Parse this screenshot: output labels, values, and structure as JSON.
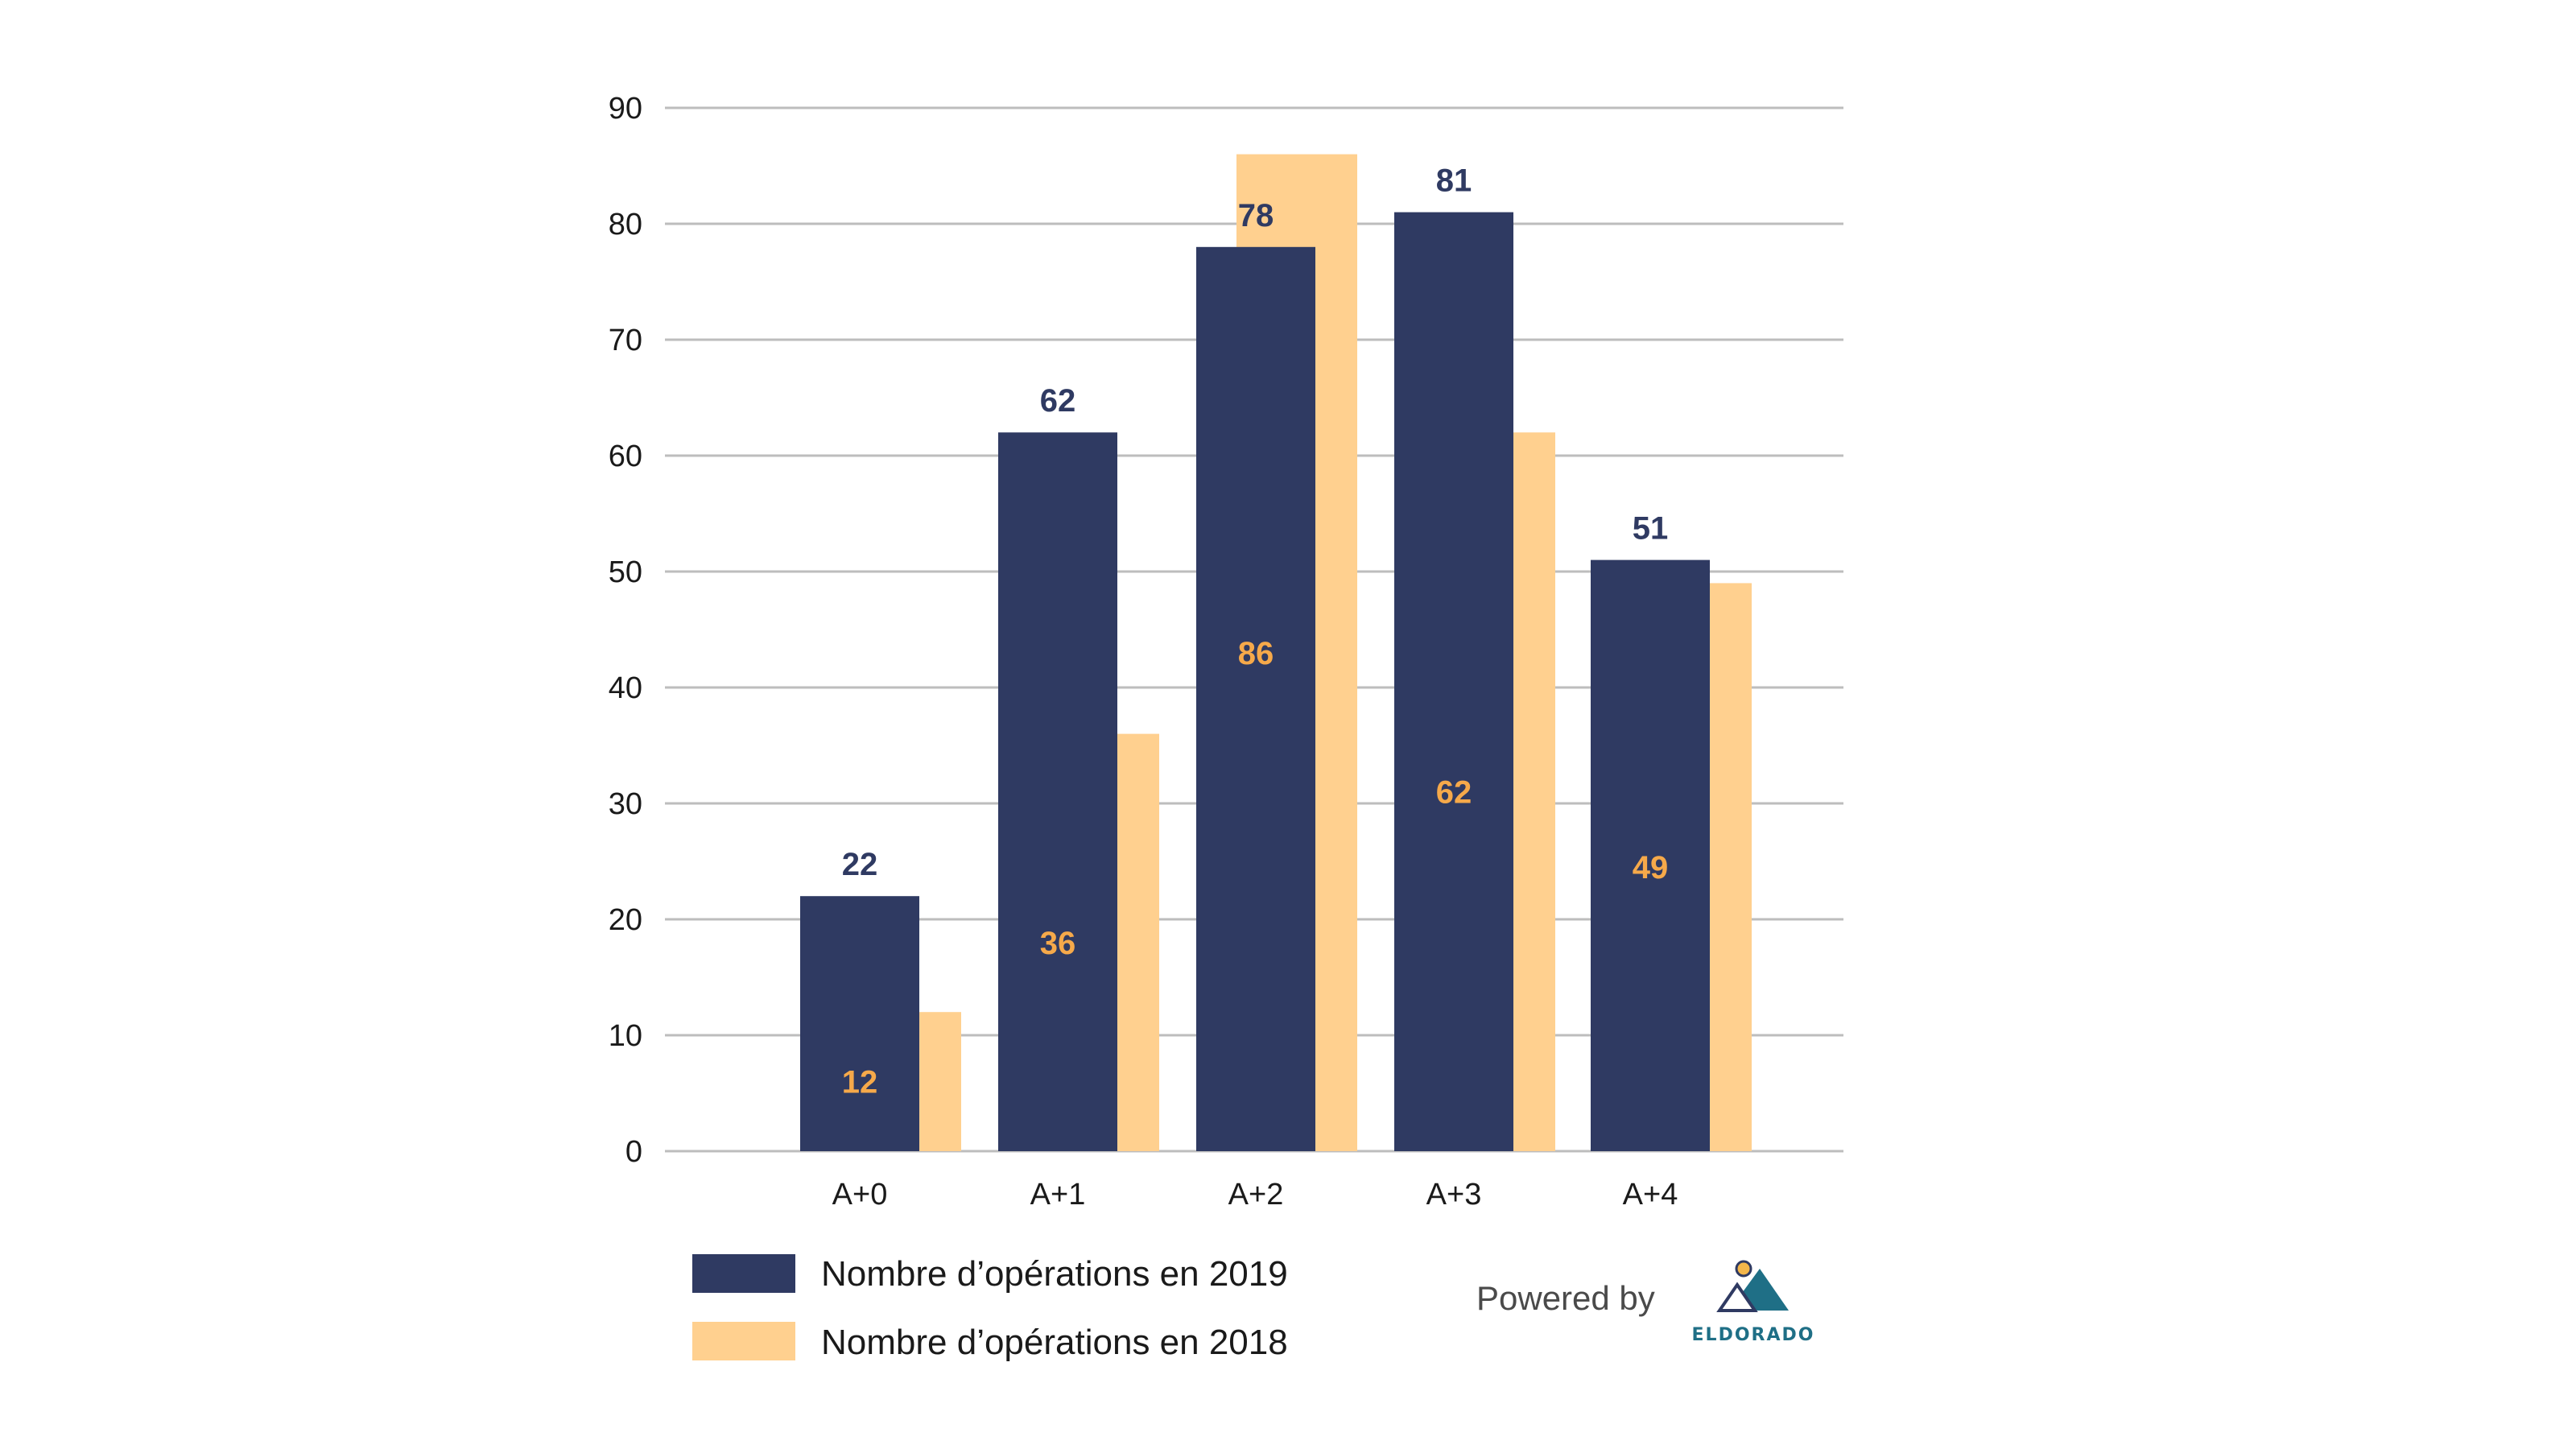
{
  "chart_data": {
    "type": "bar",
    "categories": [
      "A+0",
      "A+1",
      "A+2",
      "A+3",
      "A+4"
    ],
    "series": [
      {
        "name": "Nombre d’opérations en 2019",
        "values": [
          22,
          62,
          78,
          81,
          51
        ],
        "color": "#2f3a62",
        "label_color": "#2f3a62"
      },
      {
        "name": "Nombre d’opérations en 2018",
        "values": [
          12,
          36,
          86,
          62,
          49
        ],
        "color": "#ffd08f",
        "label_color": "#f6a94a"
      }
    ],
    "ylim": [
      0,
      90
    ],
    "yticks": [
      0,
      10,
      20,
      30,
      40,
      50,
      60,
      70,
      80,
      90
    ],
    "grid": true,
    "legend": "bottom-left",
    "title": "",
    "xlabel": "",
    "ylabel": ""
  },
  "branding": {
    "powered_by": "Powered by",
    "logo_text": "ELDORADO",
    "logo_colors": {
      "sun": "#f3b64a",
      "mountain_dark": "#1f6f86",
      "mountain_light": "#ffffff",
      "outline": "#2f3a62"
    }
  },
  "colors": {
    "grid": "#bdbdbd",
    "axis_text": "#1a1a1a"
  }
}
